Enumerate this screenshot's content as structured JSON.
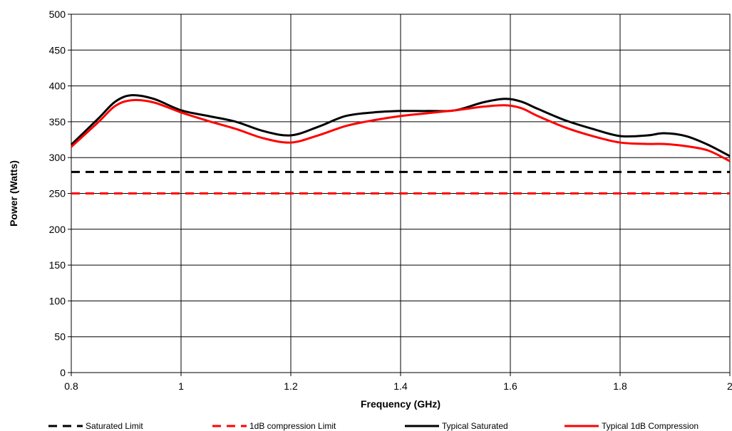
{
  "chart_data": {
    "type": "line",
    "title": "",
    "xlabel": "Frequency (GHz)",
    "ylabel": "Power (Watts)",
    "xlim": [
      0.8,
      2
    ],
    "ylim": [
      0,
      500
    ],
    "x_ticks": [
      0.8,
      1,
      1.2,
      1.4,
      1.6,
      1.8,
      2
    ],
    "x_tick_labels": [
      "0.8",
      "1",
      "1.2",
      "1.4",
      "1.6",
      "1.8",
      "2"
    ],
    "y_ticks": [
      0,
      50,
      100,
      150,
      200,
      250,
      300,
      350,
      400,
      450,
      500
    ],
    "y_tick_labels": [
      "0",
      "50",
      "100",
      "150",
      "200",
      "250",
      "300",
      "350",
      "400",
      "450",
      "500"
    ],
    "grid": true,
    "legend_position": "bottom",
    "series": [
      {
        "name": "Saturated Limit",
        "color": "#000000",
        "style": "dashed",
        "x": [
          0.8,
          2
        ],
        "y": [
          280,
          280
        ]
      },
      {
        "name": "1dB compression Limit",
        "color": "#ff0000",
        "style": "dashed",
        "x": [
          0.8,
          2
        ],
        "y": [
          250,
          250
        ]
      },
      {
        "name": "Typical Saturated",
        "color": "#000000",
        "style": "solid",
        "x": [
          0.8,
          0.85,
          0.88,
          0.91,
          0.95,
          1.0,
          1.05,
          1.1,
          1.15,
          1.2,
          1.25,
          1.3,
          1.35,
          1.4,
          1.45,
          1.5,
          1.55,
          1.59,
          1.62,
          1.65,
          1.7,
          1.75,
          1.8,
          1.85,
          1.88,
          1.92,
          1.96,
          2.0
        ],
        "y": [
          318,
          355,
          378,
          387,
          382,
          366,
          358,
          350,
          337,
          331,
          343,
          358,
          363,
          365,
          365,
          366,
          377,
          382,
          378,
          368,
          352,
          340,
          330,
          331,
          334,
          330,
          318,
          302
        ]
      },
      {
        "name": "Typical 1dB Compression",
        "color": "#ff0000",
        "style": "solid",
        "x": [
          0.8,
          0.85,
          0.88,
          0.91,
          0.95,
          1.0,
          1.05,
          1.1,
          1.15,
          1.2,
          1.25,
          1.3,
          1.35,
          1.4,
          1.45,
          1.5,
          1.55,
          1.59,
          1.62,
          1.65,
          1.7,
          1.75,
          1.8,
          1.85,
          1.88,
          1.92,
          1.96,
          2.0
        ],
        "y": [
          315,
          350,
          372,
          380,
          377,
          363,
          351,
          340,
          327,
          321,
          331,
          344,
          352,
          358,
          362,
          366,
          371,
          373,
          369,
          358,
          342,
          330,
          321,
          319,
          319,
          316,
          310,
          295
        ]
      }
    ]
  }
}
